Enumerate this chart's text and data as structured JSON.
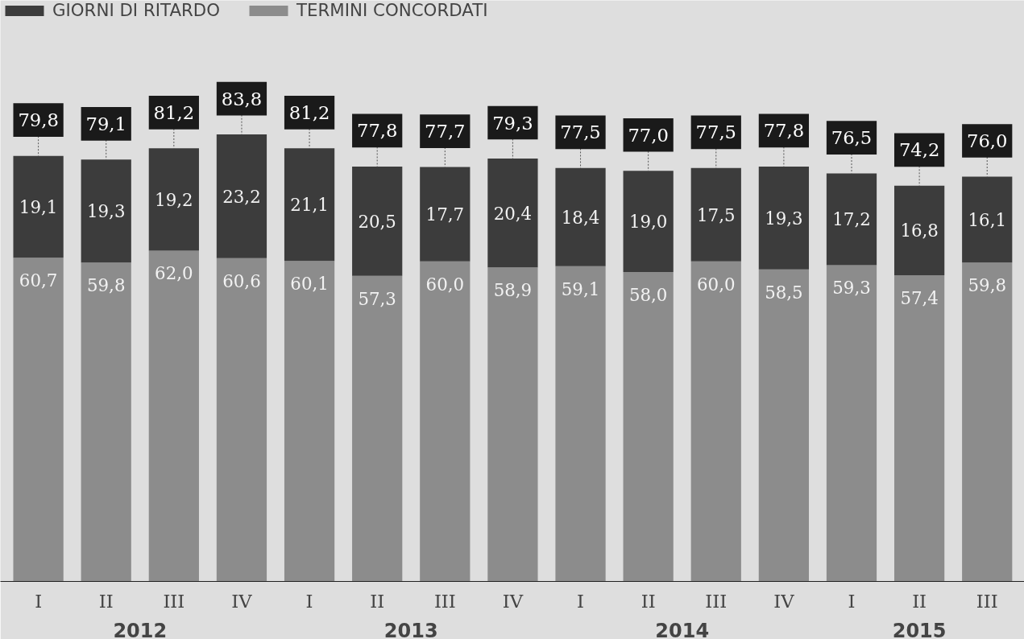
{
  "chart_data": {
    "type": "bar",
    "stacked": true,
    "categories": [
      "I",
      "II",
      "III",
      "IV",
      "I",
      "II",
      "III",
      "IV",
      "I",
      "II",
      "III",
      "IV",
      "I",
      "II",
      "III"
    ],
    "series": [
      {
        "name": "TERMINI CONCORDATI",
        "color": "#8c8c8c",
        "values": [
          60.7,
          59.8,
          62.0,
          60.6,
          60.1,
          57.3,
          60.0,
          58.9,
          59.1,
          58.0,
          60.0,
          58.5,
          59.3,
          57.4,
          59.8
        ],
        "value_labels": [
          "60,7",
          "59,8",
          "62,0",
          "60,6",
          "60,1",
          "57,3",
          "60,0",
          "58,9",
          "59,1",
          "58,0",
          "60,0",
          "58,5",
          "59,3",
          "57,4",
          "59,8"
        ]
      },
      {
        "name": "GIORNI DI RITARDO",
        "color": "#3c3c3c",
        "values": [
          19.1,
          19.3,
          19.2,
          23.2,
          21.1,
          20.5,
          17.7,
          20.4,
          18.4,
          19.0,
          17.5,
          19.3,
          17.2,
          16.8,
          16.1
        ],
        "value_labels": [
          "19,1",
          "19,3",
          "19,2",
          "23,2",
          "21,1",
          "20,5",
          "17,7",
          "20,4",
          "18,4",
          "19,0",
          "17,5",
          "19,3",
          "17,2",
          "16,8",
          "16,1"
        ]
      }
    ],
    "totals": [
      "79,8",
      "79,1",
      "81,2",
      "83,8",
      "81,2",
      "77,8",
      "77,7",
      "79,3",
      "77,5",
      "77,0",
      "77,5",
      "77,8",
      "76,5",
      "74,2",
      "76,0"
    ],
    "annotations": [
      "2012",
      "2013",
      "2014",
      "2015"
    ],
    "legend": "top left",
    "grid": false
  }
}
